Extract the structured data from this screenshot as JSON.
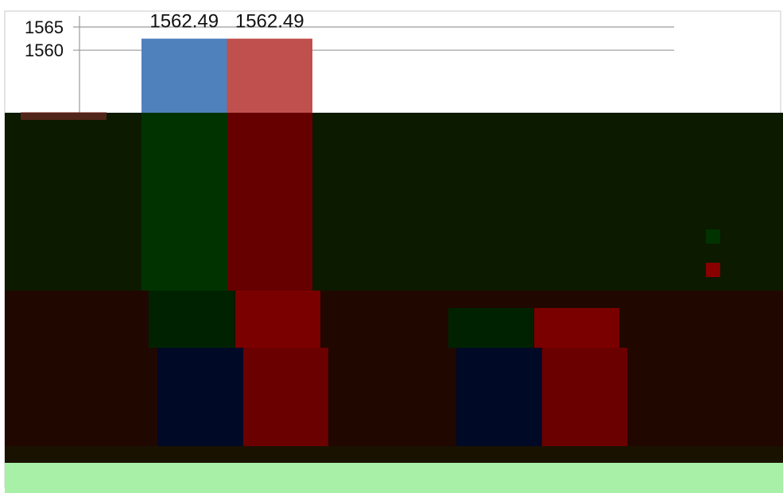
{
  "chart_data": {
    "type": "bar",
    "categories": [
      "",
      ""
    ],
    "series": [
      {
        "values": [
          1562.49,
          null
        ],
        "color": "#4F81BD"
      },
      {
        "values": [
          1562.49,
          null
        ],
        "color": "#C0504D"
      }
    ],
    "data_labels": [
      "1562.49",
      "1562.49"
    ],
    "y_ticks": [
      1565,
      1560
    ],
    "y_visible_range": [
      1557.5,
      1565
    ],
    "grid": true,
    "legend": "right",
    "title": "",
    "xlabel": "",
    "ylabel": ""
  },
  "colors": {
    "band_dark_green": "#0c1a00",
    "band_dark_maroon": "#200800",
    "band_bottom_green": "#a8f0a8",
    "series1_dark": "#003300",
    "series2_dark": "#660000",
    "series1_navy": "#000a26",
    "series2_red": "#6b0000"
  }
}
